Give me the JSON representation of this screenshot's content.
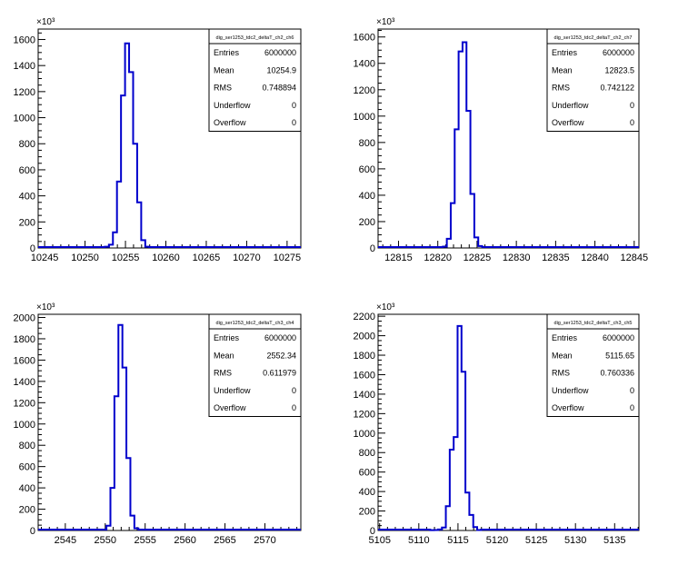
{
  "chart_data": [
    {
      "type": "bar",
      "title": "",
      "xlabel": "",
      "ylabel": "",
      "y_multiplier": "×10³",
      "xlim": [
        10244.2,
        10276.7
      ],
      "ylim": [
        0,
        1680
      ],
      "xticks": [
        10245,
        10250,
        10255,
        10260,
        10265,
        10270,
        10275
      ],
      "yticks": [
        0,
        200,
        400,
        600,
        800,
        1000,
        1200,
        1400,
        1600
      ],
      "bin_width": 0.5,
      "series": [
        {
          "bins": [
            {
              "x": 10252.7,
              "y": 10
            },
            {
              "x": 10253.2,
              "y": 25
            },
            {
              "x": 10253.7,
              "y": 120
            },
            {
              "x": 10254.2,
              "y": 510
            },
            {
              "x": 10254.7,
              "y": 1170
            },
            {
              "x": 10255.2,
              "y": 1570
            },
            {
              "x": 10255.7,
              "y": 1350
            },
            {
              "x": 10256.2,
              "y": 800
            },
            {
              "x": 10256.7,
              "y": 350
            },
            {
              "x": 10257.2,
              "y": 60
            },
            {
              "x": 10257.7,
              "y": 10
            }
          ]
        }
      ],
      "stats": {
        "name": "dig_ser1253_tdc2_deltaT_ch2_ch6",
        "rows": [
          {
            "label": "Entries",
            "value": "6000000"
          },
          {
            "label": "Mean",
            "value": "10254.9"
          },
          {
            "label": "RMS",
            "value": "0.748894"
          },
          {
            "label": "Underflow",
            "value": "0"
          },
          {
            "label": "Overflow",
            "value": "0"
          }
        ]
      },
      "grid": false,
      "legend": "top-right"
    },
    {
      "type": "bar",
      "title": "",
      "xlabel": "",
      "ylabel": "",
      "y_multiplier": "×10³",
      "xlim": [
        12812.4,
        12845.6
      ],
      "ylim": [
        0,
        1660
      ],
      "xticks": [
        12815,
        12820,
        12825,
        12830,
        12835,
        12840,
        12845
      ],
      "yticks": [
        0,
        200,
        400,
        600,
        800,
        1000,
        1200,
        1400,
        1600
      ],
      "bin_width": 0.5,
      "series": [
        {
          "bins": [
            {
              "x": 12820.9,
              "y": 10
            },
            {
              "x": 12821.4,
              "y": 70
            },
            {
              "x": 12821.9,
              "y": 340
            },
            {
              "x": 12822.4,
              "y": 900
            },
            {
              "x": 12822.9,
              "y": 1490
            },
            {
              "x": 12823.4,
              "y": 1560
            },
            {
              "x": 12823.9,
              "y": 1040
            },
            {
              "x": 12824.4,
              "y": 410
            },
            {
              "x": 12824.9,
              "y": 80
            },
            {
              "x": 12825.4,
              "y": 15
            }
          ]
        }
      ],
      "stats": {
        "name": "dig_ser1253_tdc2_deltaT_ch2_ch7",
        "rows": [
          {
            "label": "Entries",
            "value": "6000000"
          },
          {
            "label": "Mean",
            "value": "12823.5"
          },
          {
            "label": "RMS",
            "value": "0.742122"
          },
          {
            "label": "Underflow",
            "value": "0"
          },
          {
            "label": "Overflow",
            "value": "0"
          }
        ]
      },
      "grid": false,
      "legend": "top-right"
    },
    {
      "type": "bar",
      "title": "",
      "xlabel": "",
      "ylabel": "",
      "y_multiplier": "×10³",
      "xlim": [
        2541.6,
        2574.5
      ],
      "ylim": [
        0,
        2030
      ],
      "xticks": [
        2545,
        2550,
        2555,
        2560,
        2565,
        2570
      ],
      "yticks": [
        0,
        200,
        400,
        600,
        800,
        1000,
        1200,
        1400,
        1600,
        1800,
        2000
      ],
      "bin_width": 0.5,
      "series": [
        {
          "bins": [
            {
              "x": 2550.4,
              "y": 45
            },
            {
              "x": 2550.9,
              "y": 400
            },
            {
              "x": 2551.4,
              "y": 1260
            },
            {
              "x": 2551.9,
              "y": 1930
            },
            {
              "x": 2552.4,
              "y": 1530
            },
            {
              "x": 2552.9,
              "y": 680
            },
            {
              "x": 2553.4,
              "y": 140
            },
            {
              "x": 2553.9,
              "y": 20
            }
          ]
        }
      ],
      "stats": {
        "name": "dig_ser1253_tdc2_deltaT_ch3_ch4",
        "rows": [
          {
            "label": "Entries",
            "value": "6000000"
          },
          {
            "label": "Mean",
            "value": "2552.34"
          },
          {
            "label": "RMS",
            "value": "0.611979"
          },
          {
            "label": "Underflow",
            "value": "0"
          },
          {
            "label": "Overflow",
            "value": "0"
          }
        ]
      },
      "grid": false,
      "legend": "top-right"
    },
    {
      "type": "bar",
      "title": "",
      "xlabel": "",
      "ylabel": "",
      "y_multiplier": "×10³",
      "xlim": [
        5104.8,
        5138.1
      ],
      "ylim": [
        0,
        2220
      ],
      "xticks": [
        5105,
        5110,
        5115,
        5120,
        5125,
        5130,
        5135
      ],
      "yticks": [
        0,
        200,
        400,
        600,
        800,
        1000,
        1200,
        1400,
        1600,
        1800,
        2000,
        2200
      ],
      "bin_width": 0.5,
      "series": [
        {
          "bins": [
            {
              "x": 5111.7,
              "y": 3
            },
            {
              "x": 5112.2,
              "y": 5
            },
            {
              "x": 5112.7,
              "y": 10
            },
            {
              "x": 5113.2,
              "y": 30
            },
            {
              "x": 5113.7,
              "y": 250
            },
            {
              "x": 5114.2,
              "y": 830
            },
            {
              "x": 5114.7,
              "y": 960
            },
            {
              "x": 5115.2,
              "y": 2100
            },
            {
              "x": 5115.7,
              "y": 1630
            },
            {
              "x": 5116.2,
              "y": 390
            },
            {
              "x": 5116.7,
              "y": 160
            },
            {
              "x": 5117.2,
              "y": 35
            },
            {
              "x": 5117.7,
              "y": 5
            }
          ]
        }
      ],
      "stats": {
        "name": "dig_ser1253_tdc2_deltaT_ch3_ch5",
        "rows": [
          {
            "label": "Entries",
            "value": "6000000"
          },
          {
            "label": "Mean",
            "value": "5115.65"
          },
          {
            "label": "RMS",
            "value": "0.760336"
          },
          {
            "label": "Underflow",
            "value": "0"
          },
          {
            "label": "Overflow",
            "value": "0"
          }
        ]
      },
      "grid": false,
      "legend": "top-right"
    }
  ],
  "colors": {
    "histogram_line": "#0000cc",
    "axis": "#000000",
    "stats_border": "#000000",
    "background": "#ffffff"
  }
}
